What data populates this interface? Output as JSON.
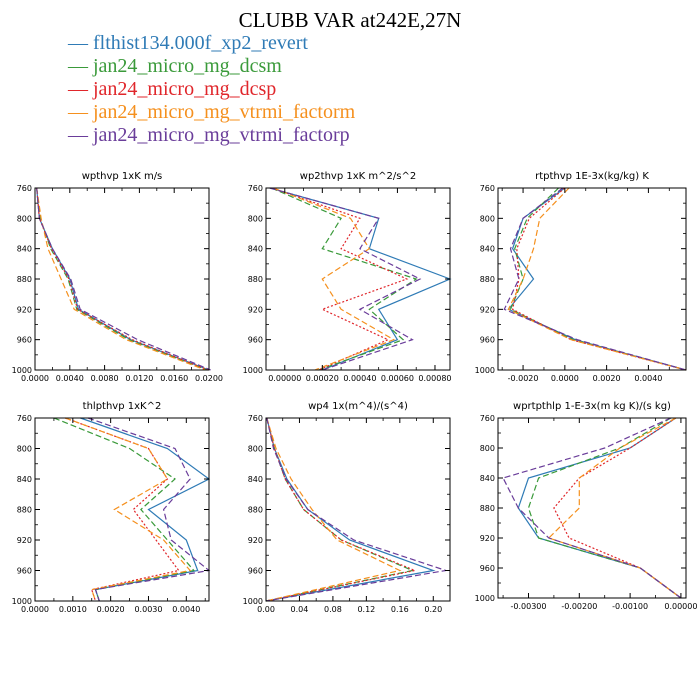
{
  "figure": {
    "title": "CLUBB VAR at242E,27N"
  },
  "legend": [
    {
      "name": "flthist134.000f_xp2_revert",
      "color": "#2f7bb6"
    },
    {
      "name": "jan24_micro_mg_dcsm",
      "color": "#3a9a3a"
    },
    {
      "name": "jan24_micro_mg_dcsp",
      "color": "#e0262b"
    },
    {
      "name": "jan24_micro_mg_vtrmi_factorm",
      "color": "#f5901e"
    },
    {
      "name": "jan24_micro_mg_vtrmi_factorp",
      "color": "#6a3d9a"
    }
  ],
  "chart_data": [
    {
      "type": "line",
      "title": "wpthvp  1xK m/s",
      "xlim": [
        0,
        0.02
      ],
      "ylim": [
        760,
        1000
      ],
      "y_reversed": true,
      "xticks": [
        "0.0000",
        "0.0040",
        "0.0080",
        "0.0120",
        "0.0160",
        "0.0200"
      ],
      "yticks": [
        "760",
        "800",
        "840",
        "880",
        "920",
        "960",
        "1000"
      ],
      "y": [
        760,
        800,
        840,
        880,
        920,
        960,
        1000
      ],
      "series": [
        {
          "color": "#2f7bb6",
          "dash": "",
          "x": [
            0.0002,
            0.0005,
            0.002,
            0.004,
            0.005,
            0.011,
            0.02
          ]
        },
        {
          "color": "#3a9a3a",
          "dash": "6,3",
          "x": [
            0.0002,
            0.0006,
            0.0018,
            0.0038,
            0.0048,
            0.0108,
            0.0198
          ]
        },
        {
          "color": "#e0262b",
          "dash": "2,2",
          "x": [
            0.0002,
            0.0005,
            0.0019,
            0.0039,
            0.0049,
            0.0112,
            0.0199
          ]
        },
        {
          "color": "#f5901e",
          "dash": "6,3",
          "x": [
            0.0002,
            0.0007,
            0.0015,
            0.003,
            0.0045,
            0.0105,
            0.0196
          ]
        },
        {
          "color": "#6a3d9a",
          "dash": "6,3",
          "x": [
            0.0002,
            0.0005,
            0.002,
            0.0041,
            0.0052,
            0.0118,
            0.0202
          ]
        }
      ]
    },
    {
      "type": "line",
      "title": "wp2thvp  1xK m^2/s^2",
      "xlim": [
        -0.0001,
        0.00088
      ],
      "ylim": [
        760,
        1000
      ],
      "y_reversed": true,
      "xticks": [
        "0.00000",
        "0.00020",
        "0.00040",
        "0.00060",
        "0.00080"
      ],
      "yticks": [
        "760",
        "800",
        "840",
        "880",
        "920",
        "960",
        "1000"
      ],
      "y": [
        760,
        800,
        840,
        880,
        920,
        960,
        1000
      ],
      "series": [
        {
          "color": "#2f7bb6",
          "dash": "",
          "x": [
            -8e-05,
            0.0005,
            0.00045,
            0.00088,
            0.0005,
            0.0006,
            0.0002
          ]
        },
        {
          "color": "#3a9a3a",
          "dash": "6,3",
          "x": [
            -7e-05,
            0.0003,
            0.0002,
            0.0007,
            0.00045,
            0.00063,
            0.00018
          ]
        },
        {
          "color": "#e0262b",
          "dash": "2,2",
          "x": [
            -7e-05,
            0.0004,
            0.0003,
            0.00065,
            0.0002,
            0.00055,
            0.00018
          ]
        },
        {
          "color": "#f5901e",
          "dash": "6,3",
          "x": [
            -6e-05,
            0.00035,
            0.00045,
            0.0002,
            0.0003,
            0.00058,
            0.00016
          ]
        },
        {
          "color": "#6a3d9a",
          "dash": "6,3",
          "x": [
            -8e-05,
            0.0005,
            0.0004,
            0.00072,
            0.0004,
            0.00068,
            0.0002
          ]
        }
      ]
    },
    {
      "type": "line",
      "title": "rtpthvp  1E-3x(kg/kg) K",
      "xlim": [
        -0.0032,
        0.0058
      ],
      "ylim": [
        760,
        1000
      ],
      "y_reversed": true,
      "xticks": [
        "-0.0020",
        "0.0000",
        "0.0020",
        "0.0040"
      ],
      "yticks": [
        "760",
        "800",
        "840",
        "880",
        "920",
        "960",
        "1000"
      ],
      "y": [
        760,
        800,
        840,
        880,
        920,
        960,
        1000
      ],
      "series": [
        {
          "color": "#2f7bb6",
          "dash": "",
          "x": [
            0.0,
            -0.002,
            -0.0025,
            -0.0015,
            -0.0027,
            0.0005,
            0.0058
          ]
        },
        {
          "color": "#3a9a3a",
          "dash": "6,3",
          "x": [
            -0.0003,
            -0.0018,
            -0.0024,
            -0.002,
            -0.0026,
            0.0004,
            0.0058
          ]
        },
        {
          "color": "#e0262b",
          "dash": "2,2",
          "x": [
            0.0,
            -0.0017,
            -0.0023,
            -0.0022,
            -0.0025,
            0.0003,
            0.0058
          ]
        },
        {
          "color": "#f5901e",
          "dash": "6,3",
          "x": [
            0.0002,
            -0.0012,
            -0.0015,
            -0.002,
            -0.0027,
            0.0003,
            0.0058
          ]
        },
        {
          "color": "#6a3d9a",
          "dash": "6,3",
          "x": [
            -0.0001,
            -0.002,
            -0.0026,
            -0.0022,
            -0.0029,
            0.0006,
            0.0058
          ]
        }
      ]
    },
    {
      "type": "line",
      "title": "thlpthvp  1xK^2",
      "xlim": [
        0,
        0.0046
      ],
      "ylim": [
        760,
        1000
      ],
      "y_reversed": true,
      "xticks": [
        "0.0000",
        "0.0010",
        "0.0020",
        "0.0030",
        "0.0040"
      ],
      "yticks": [
        "760",
        "800",
        "840",
        "880",
        "920",
        "960",
        "1000"
      ],
      "y": [
        760,
        800,
        840,
        880,
        920,
        960,
        985,
        1000
      ],
      "series": [
        {
          "color": "#2f7bb6",
          "dash": "",
          "x": [
            0.0012,
            0.0035,
            0.0046,
            0.003,
            0.004,
            0.0043,
            0.0016,
            0.0017
          ]
        },
        {
          "color": "#3a9a3a",
          "dash": "6,3",
          "x": [
            0.0005,
            0.0025,
            0.0037,
            0.0028,
            0.0035,
            0.0042,
            0.0016,
            0.0017
          ]
        },
        {
          "color": "#e0262b",
          "dash": "2,2",
          "x": [
            0.0008,
            0.003,
            0.0035,
            0.0026,
            0.0032,
            0.0038,
            0.0015,
            0.0016
          ]
        },
        {
          "color": "#f5901e",
          "dash": "6,3",
          "x": [
            0.0008,
            0.003,
            0.0035,
            0.0021,
            0.0034,
            0.0041,
            0.0015,
            0.0016
          ]
        },
        {
          "color": "#6a3d9a",
          "dash": "6,3",
          "x": [
            0.0014,
            0.0037,
            0.0041,
            0.0034,
            0.0036,
            0.0046,
            0.0016,
            0.0017
          ]
        }
      ]
    },
    {
      "type": "line",
      "title": "wp4  1x(m^4)/(s^4)",
      "xlim": [
        0,
        0.22
      ],
      "ylim": [
        760,
        1000
      ],
      "y_reversed": true,
      "xticks": [
        "0.00",
        "0.04",
        "0.08",
        "0.12",
        "0.16",
        "0.20"
      ],
      "yticks": [
        "760",
        "800",
        "840",
        "880",
        "920",
        "960",
        "1000"
      ],
      "y": [
        760,
        800,
        840,
        880,
        920,
        960,
        1000
      ],
      "series": [
        {
          "color": "#2f7bb6",
          "dash": "",
          "x": [
            0.001,
            0.01,
            0.025,
            0.05,
            0.1,
            0.2,
            0.0
          ]
        },
        {
          "color": "#3a9a3a",
          "dash": "6,3",
          "x": [
            0.001,
            0.01,
            0.023,
            0.045,
            0.09,
            0.175,
            0.0
          ]
        },
        {
          "color": "#e0262b",
          "dash": "2,2",
          "x": [
            0.001,
            0.01,
            0.023,
            0.045,
            0.09,
            0.178,
            0.0
          ]
        },
        {
          "color": "#f5901e",
          "dash": "6,3",
          "x": [
            0.001,
            0.012,
            0.03,
            0.055,
            0.085,
            0.16,
            0.0
          ]
        },
        {
          "color": "#6a3d9a",
          "dash": "6,3",
          "x": [
            0.001,
            0.009,
            0.024,
            0.05,
            0.105,
            0.215,
            0.0
          ]
        }
      ]
    },
    {
      "type": "line",
      "title": "wprtpthlp  1-E-3x(m kg K)/(s kg)",
      "xlim": [
        -0.0036,
        0.0001
      ],
      "ylim": [
        760,
        1000
      ],
      "y_reversed": true,
      "xticks": [
        "-0.00300",
        "-0.00200",
        "-0.00100",
        "0.00000"
      ],
      "yticks": [
        "760",
        "800",
        "840",
        "880",
        "920",
        "960",
        "1000"
      ],
      "y": [
        760,
        800,
        840,
        880,
        920,
        960,
        1000
      ],
      "series": [
        {
          "color": "#2f7bb6",
          "dash": "",
          "x": [
            -0.0001,
            -0.001,
            -0.003,
            -0.0032,
            -0.0028,
            -0.0008,
            0.0
          ]
        },
        {
          "color": "#3a9a3a",
          "dash": "6,3",
          "x": [
            -0.0002,
            -0.0012,
            -0.0028,
            -0.003,
            -0.0028,
            -0.0008,
            0.0
          ]
        },
        {
          "color": "#e0262b",
          "dash": "2,2",
          "x": [
            -0.0001,
            -0.001,
            -0.002,
            -0.0025,
            -0.0022,
            -0.0008,
            0.0
          ]
        },
        {
          "color": "#f5901e",
          "dash": "6,3",
          "x": [
            -0.0001,
            -0.0012,
            -0.002,
            -0.002,
            -0.0026,
            -0.0008,
            0.0
          ]
        },
        {
          "color": "#6a3d9a",
          "dash": "6,3",
          "x": [
            -0.0002,
            -0.0015,
            -0.0035,
            -0.0032,
            -0.0026,
            -0.0008,
            0.0
          ]
        }
      ]
    }
  ]
}
